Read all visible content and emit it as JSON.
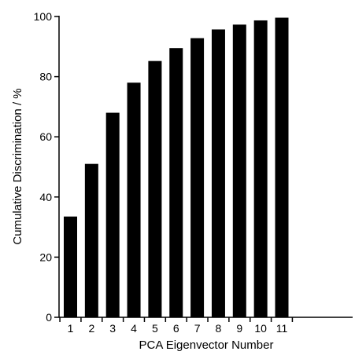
{
  "chart_data": {
    "type": "bar",
    "title": "",
    "xlabel": "PCA Eigenvector Number",
    "ylabel": "Cumulative Discrimination / %",
    "categories": [
      "1",
      "2",
      "3",
      "4",
      "5",
      "6",
      "7",
      "8",
      "9",
      "10",
      "11"
    ],
    "values": [
      33.5,
      51,
      68,
      78,
      85.2,
      89.5,
      92.8,
      95.7,
      97.3,
      98.7,
      99.6
    ],
    "ylim": [
      0,
      100
    ],
    "yticks": [
      0,
      20,
      40,
      60,
      80,
      100
    ],
    "ytick_labels": [
      "0",
      "20",
      "40",
      "60",
      "80",
      "100"
    ],
    "grid": false,
    "legend": "none",
    "bar_color": "#000000"
  }
}
